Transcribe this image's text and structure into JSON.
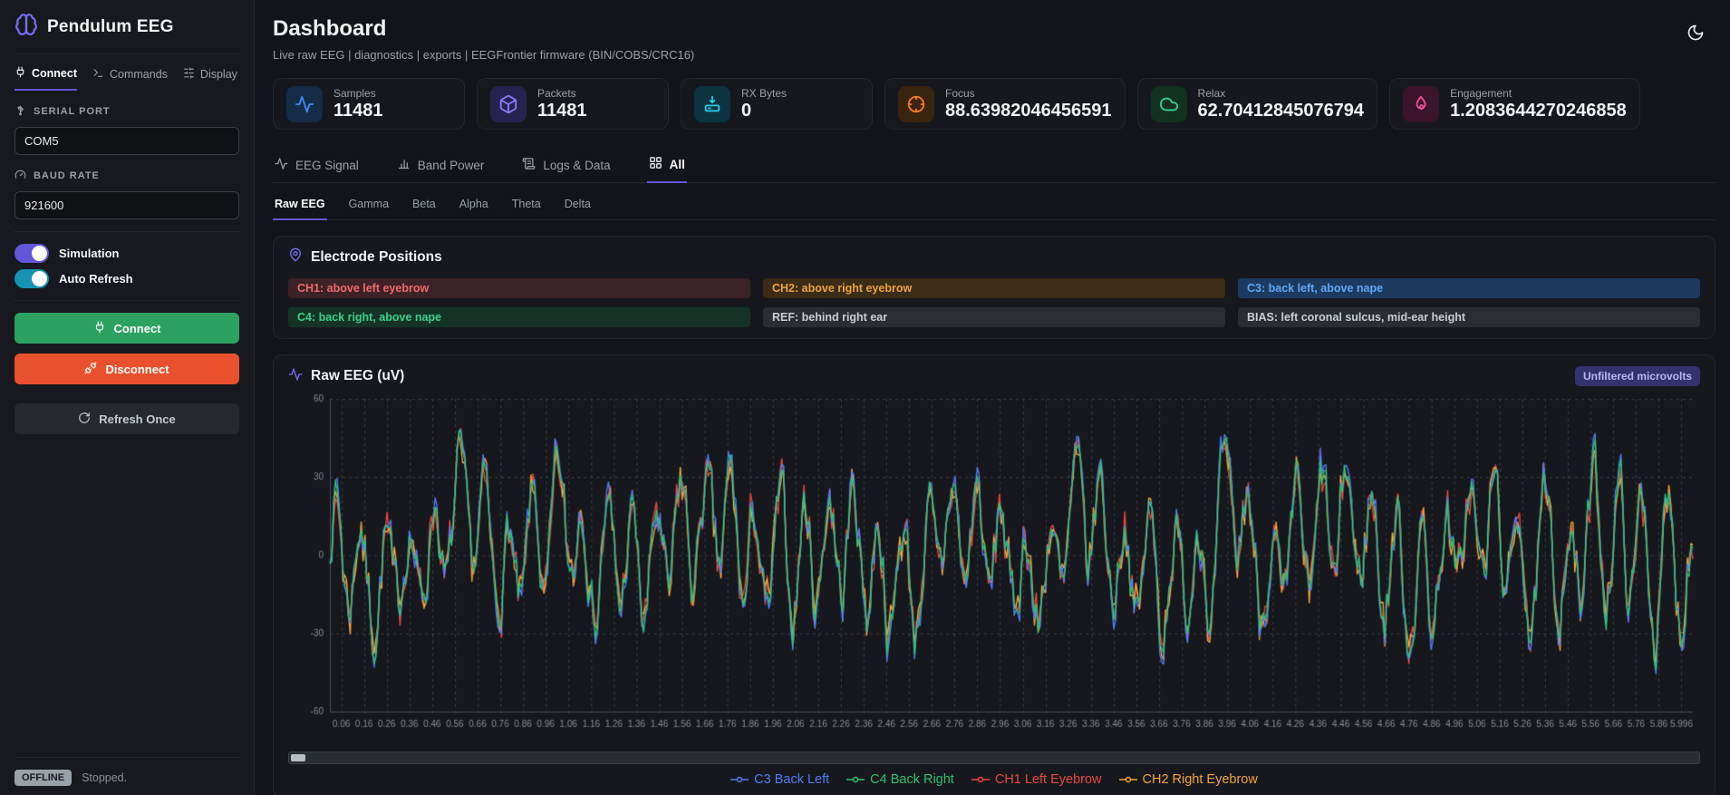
{
  "app": {
    "name": "Pendulum EEG"
  },
  "sidebar": {
    "tabs": [
      {
        "label": "Connect",
        "active": true
      },
      {
        "label": "Commands",
        "active": false
      },
      {
        "label": "Display",
        "active": false
      }
    ],
    "serial_port_label": "SERIAL PORT",
    "serial_port_value": "COM5",
    "baud_rate_label": "BAUD RATE",
    "baud_rate_value": "921600",
    "toggles": [
      {
        "label": "Simulation",
        "on": true,
        "color": "#6356d7"
      },
      {
        "label": "Auto Refresh",
        "on": true,
        "color": "#1593b4"
      }
    ],
    "connect_label": "Connect",
    "disconnect_label": "Disconnect",
    "refresh_label": "Refresh Once",
    "status_badge": "OFFLINE",
    "status_text": "Stopped."
  },
  "header": {
    "title": "Dashboard",
    "subtitle": "Live raw EEG | diagnostics | exports | EEGFrontier firmware (BIN/COBS/CRC16)"
  },
  "stats": [
    {
      "label": "Samples",
      "value": "11481",
      "icon": "activity-icon",
      "icon_color": "#3d8bfd",
      "icon_bg": "#152c47"
    },
    {
      "label": "Packets",
      "value": "11481",
      "icon": "package-icon",
      "icon_color": "#8b7bf8",
      "icon_bg": "#272350"
    },
    {
      "label": "RX Bytes",
      "value": "0",
      "icon": "download-icon",
      "icon_color": "#29c8e8",
      "icon_bg": "#0e3340"
    },
    {
      "label": "Focus",
      "value": "88.63982046456591",
      "icon": "crosshair-icon",
      "icon_color": "#f97b22",
      "icon_bg": "#3a240f"
    },
    {
      "label": "Relax",
      "value": "62.70412845076794",
      "icon": "cloud-icon",
      "icon_color": "#35d08c",
      "icon_bg": "#10321f"
    },
    {
      "label": "Engagement",
      "value": "1.2083644270246858",
      "icon": "flame-icon",
      "icon_color": "#ee4f9b",
      "icon_bg": "#3a142a"
    }
  ],
  "main_tabs": [
    {
      "label": "EEG Signal",
      "active": false
    },
    {
      "label": "Band Power",
      "active": false
    },
    {
      "label": "Logs & Data",
      "active": false
    },
    {
      "label": "All",
      "active": true
    }
  ],
  "sub_tabs": [
    {
      "label": "Raw EEG",
      "active": true
    },
    {
      "label": "Gamma",
      "active": false
    },
    {
      "label": "Beta",
      "active": false
    },
    {
      "label": "Alpha",
      "active": false
    },
    {
      "label": "Theta",
      "active": false
    },
    {
      "label": "Delta",
      "active": false
    }
  ],
  "electrodes": {
    "title": "Electrode Positions",
    "chips": [
      {
        "text": "CH1: above left eyebrow",
        "color": "#ef6a6a",
        "bg": "#3c2227"
      },
      {
        "text": "CH2: above right eyebrow",
        "color": "#efa23d",
        "bg": "#3a2c15"
      },
      {
        "text": "C3: back left, above nape",
        "color": "#5fa8f5",
        "bg": "#1d3a60"
      },
      {
        "text": "C4: back right, above nape",
        "color": "#3bd08c",
        "bg": "#143326"
      },
      {
        "text": "REF: behind right ear",
        "color": "#c9cdd3",
        "bg": "#2a2d33"
      },
      {
        "text": "BIAS: left coronal sulcus, mid-ear height",
        "color": "#c9cdd3",
        "bg": "#2a2d33"
      }
    ]
  },
  "raw_panel": {
    "title": "Raw EEG (uV)",
    "badge": "Unfiltered microvolts"
  },
  "chart_data": {
    "type": "line",
    "title": "Raw EEG (uV)",
    "xlabel": "",
    "ylabel": "",
    "ylim": [
      -60,
      60
    ],
    "y_ticks": [
      60,
      30,
      0,
      -30,
      -60
    ],
    "x_ticks": [
      "0.06",
      "0.16",
      "0.26",
      "0.36",
      "0.46",
      "0.56",
      "0.66",
      "0.76",
      "0.86",
      "0.96",
      "1.06",
      "1.16",
      "1.26",
      "1.36",
      "1.46",
      "1.56",
      "1.66",
      "1.76",
      "1.86",
      "1.96",
      "2.06",
      "2.16",
      "2.26",
      "2.36",
      "2.46",
      "2.56",
      "2.66",
      "2.76",
      "2.86",
      "2.96",
      "3.06",
      "3.16",
      "3.26",
      "3.36",
      "3.46",
      "3.56",
      "3.66",
      "3.76",
      "3.86",
      "3.96",
      "4.06",
      "4.16",
      "4.26",
      "4.36",
      "4.46",
      "4.56",
      "4.66",
      "4.76",
      "4.86",
      "4.96",
      "5.06",
      "5.16",
      "5.26",
      "5.36",
      "5.46",
      "5.56",
      "5.66",
      "5.76",
      "5.86",
      "5.996"
    ],
    "x_range": [
      0.06,
      5.996
    ],
    "grid": "dashed",
    "legend_position": "bottom",
    "n_points": 740,
    "seed": 7,
    "envelope_uv": 55,
    "note": "Four nearly-identical dense oscillatory raw-EEG noise traces, ~25 px peak spacing, amplitude mostly within ±55 uV; green (C4) drawn on top so others appear as colored fringes at peaks.",
    "series": [
      {
        "name": "C3 Back Left",
        "color": "#4f7df2",
        "scale": 1.05,
        "jitter": 3,
        "seed": 11
      },
      {
        "name": "C4 Back Right",
        "color": "#2fbf71",
        "scale": 1.0,
        "jitter": 2,
        "seed": 12
      },
      {
        "name": "CH1 Left Eyebrow",
        "color": "#e8483f",
        "scale": 0.97,
        "jitter": 5,
        "seed": 13
      },
      {
        "name": "CH2 Right Eyebrow",
        "color": "#f2a33c",
        "scale": 0.97,
        "jitter": 5,
        "seed": 14
      }
    ],
    "draw_order": [
      2,
      3,
      0,
      1
    ]
  }
}
